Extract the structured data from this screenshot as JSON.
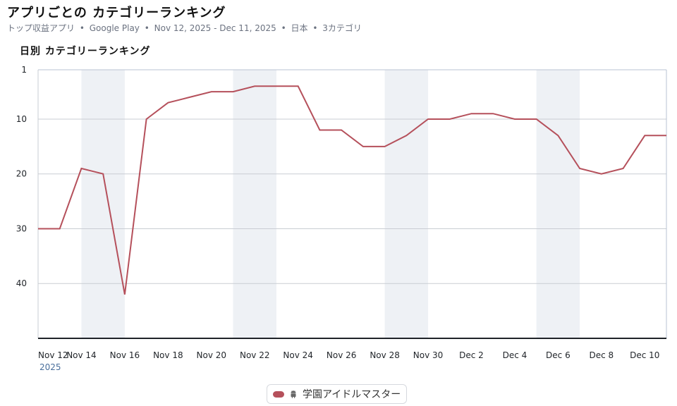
{
  "header": {
    "title": "アプリごとの カテゴリーランキング",
    "subtitle_parts": [
      "トップ収益アプリ",
      "Google Play",
      "Nov 12, 2025 - Dec 11, 2025",
      "日本",
      "3カテゴリ"
    ],
    "separator": "•"
  },
  "chart_title": "日別 カテゴリーランキング",
  "legend": {
    "series_label": "学園アイドルマスター",
    "platform_icon": "android-icon"
  },
  "colors": {
    "series": "#b5505b",
    "weekend_band": "#eef1f5",
    "grid": "#c9cdd3",
    "axis": "#1f2328",
    "year_label": "#4a6f9c"
  },
  "chart_data": {
    "type": "line",
    "title": "日別 カテゴリーランキング",
    "y_inverted": true,
    "ylim": [
      1,
      50
    ],
    "y_ticks": [
      1,
      10,
      20,
      30,
      40
    ],
    "x_start": "2025-11-12",
    "x_end": "2025-12-11",
    "x_tick_labels": [
      "Nov 12",
      "Nov 14",
      "Nov 16",
      "Nov 18",
      "Nov 20",
      "Nov 22",
      "Nov 24",
      "Nov 26",
      "Nov 28",
      "Nov 30",
      "Dec 2",
      "Dec 4",
      "Dec 6",
      "Dec 8",
      "Dec 10"
    ],
    "x_year_label": "2025",
    "weekend_bands": [
      [
        "Nov 14",
        "Nov 16"
      ],
      [
        "Nov 21",
        "Nov 23"
      ],
      [
        "Nov 28",
        "Nov 30"
      ],
      [
        "Dec 5",
        "Dec 7"
      ]
    ],
    "grid": true,
    "legend_position": "bottom-center",
    "x": [
      "Nov 12",
      "Nov 13",
      "Nov 14",
      "Nov 15",
      "Nov 16",
      "Nov 17",
      "Nov 18",
      "Nov 19",
      "Nov 20",
      "Nov 21",
      "Nov 22",
      "Nov 23",
      "Nov 24",
      "Nov 25",
      "Nov 26",
      "Nov 27",
      "Nov 28",
      "Nov 29",
      "Nov 30",
      "Dec 1",
      "Dec 2",
      "Dec 3",
      "Dec 4",
      "Dec 5",
      "Dec 6",
      "Dec 7",
      "Dec 8",
      "Dec 9",
      "Dec 10",
      "Dec 11"
    ],
    "series": [
      {
        "name": "学園アイドルマスター",
        "values": [
          30,
          30,
          19,
          20,
          42,
          10,
          7,
          6,
          5,
          5,
          4,
          4,
          4,
          12,
          12,
          15,
          15,
          13,
          10,
          10,
          9,
          9,
          10,
          10,
          13,
          19,
          20,
          19,
          13,
          13
        ]
      }
    ]
  }
}
